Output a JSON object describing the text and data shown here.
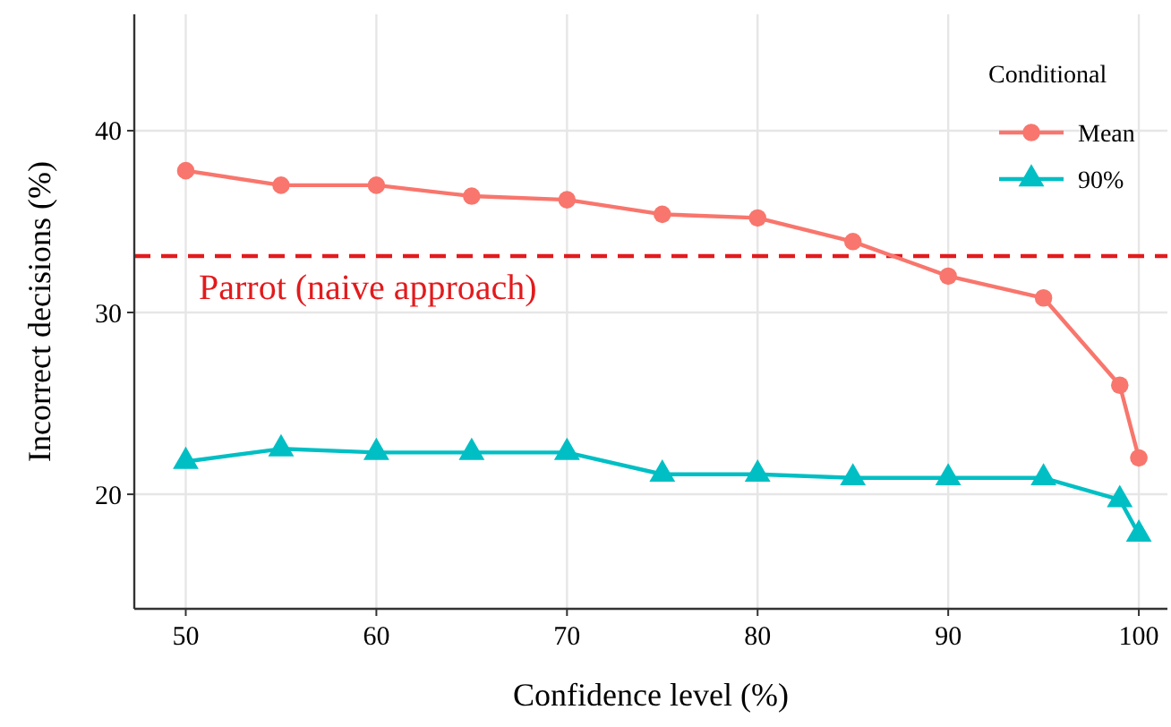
{
  "chart_data": {
    "type": "line",
    "xlabel": "Confidence level (%)",
    "ylabel": "Incorrect decisions (%)",
    "legend_title": "Conditional",
    "x": [
      50,
      55,
      60,
      65,
      70,
      75,
      80,
      85,
      90,
      95,
      99,
      100
    ],
    "series": [
      {
        "name": "Mean",
        "color": "#f8766d",
        "marker": "circle",
        "values": [
          37.8,
          37.0,
          37.0,
          36.4,
          36.2,
          35.4,
          35.2,
          33.9,
          32.0,
          30.8,
          26.0,
          22.0
        ]
      },
      {
        "name": "90%",
        "color": "#00bfc4",
        "marker": "triangle",
        "values": [
          21.8,
          22.5,
          22.3,
          22.3,
          22.3,
          21.1,
          21.1,
          20.9,
          20.9,
          20.9,
          19.7,
          17.8
        ]
      }
    ],
    "xlim": [
      47.3,
      101.5
    ],
    "xticks": [
      50,
      60,
      70,
      80,
      90,
      100
    ],
    "ylim": [
      13.7,
      46.4
    ],
    "yticks": [
      20,
      30,
      40
    ],
    "grid": true,
    "legend": "top right",
    "ref_lines": [
      {
        "axis": "y",
        "value": 33.1,
        "label": "Parrot (naive approach)",
        "color": "#e31a1c",
        "line_style": "dashed"
      }
    ]
  }
}
